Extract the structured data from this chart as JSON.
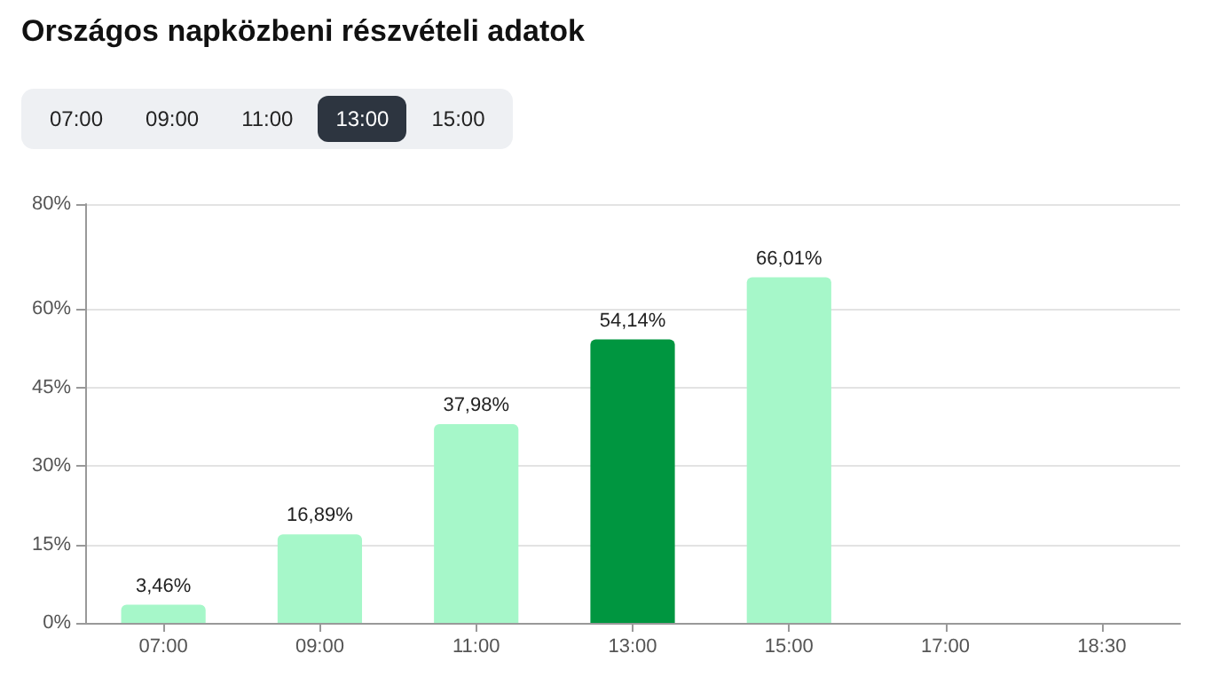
{
  "chart_data": {
    "type": "bar",
    "title": "Országos napközbeni részvételi adatok",
    "annotations": [
      "07:00",
      "09:00",
      "11:00",
      "13:00",
      "15:00"
    ],
    "categories": [
      "07:00",
      "09:00",
      "11:00",
      "13:00",
      "15:00",
      "17:00",
      "18:30"
    ],
    "values": [
      3.46,
      16.89,
      37.98,
      54.14,
      66.01,
      null,
      null
    ],
    "colors": [
      "#a6f7c9",
      "#a6f7c9",
      "#a6f7c9",
      "#009640",
      "#a6f7c9",
      "#a6f7c9",
      "#a6f7c9"
    ],
    "value_labels": [
      "3,46%",
      "16,89%",
      "37,98%",
      "54,14%",
      "66,01%",
      null,
      null
    ],
    "ylim": [
      0,
      80
    ],
    "yticks": [
      {
        "value": 0,
        "label": "0%"
      },
      {
        "value": 15,
        "label": "15%"
      },
      {
        "value": 30,
        "label": "30%"
      },
      {
        "value": 45,
        "label": "45%"
      },
      {
        "value": 60,
        "label": "60%"
      },
      {
        "value": 80,
        "label": "80%"
      }
    ],
    "grid": "y"
  }
}
